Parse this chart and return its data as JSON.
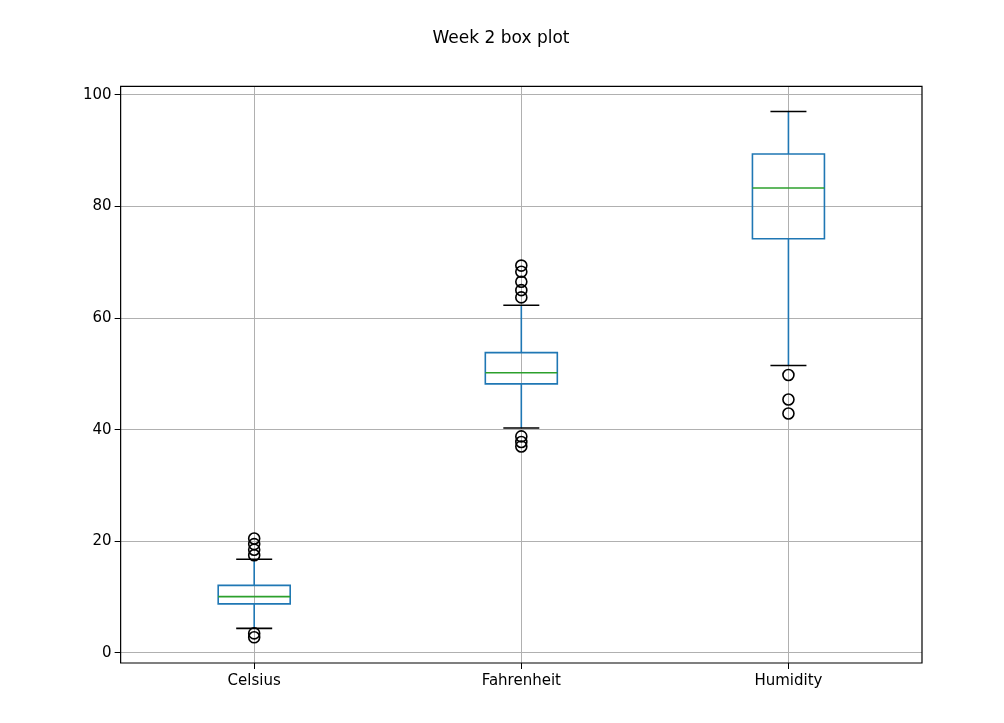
{
  "chart_data": {
    "type": "box",
    "title": "Week 2 box plot",
    "categories": [
      "Celsius",
      "Fahrenheit",
      "Humidity"
    ],
    "boxes": [
      {
        "low": 4.4,
        "q1": 8.8,
        "median": 10.1,
        "q3": 12.1,
        "high": 16.8,
        "outliers": [
          17.5,
          18.5,
          19.5,
          20.5,
          3.5,
          2.8
        ]
      },
      {
        "low": 40.3,
        "q1": 48.2,
        "median": 50.2,
        "q3": 53.8,
        "high": 62.3,
        "outliers": [
          63.7,
          65,
          66.5,
          68.3,
          69.4,
          38.8,
          37.8,
          37
        ]
      },
      {
        "low": 51.5,
        "q1": 74.2,
        "median": 83.3,
        "q3": 89.4,
        "high": 97,
        "outliers": [
          49.8,
          45.4,
          42.9
        ]
      }
    ],
    "color": "#1f77b4",
    "ylim": [
      -1.8,
      101.5
    ],
    "yticks": [
      0,
      20,
      40,
      60,
      80,
      100
    ],
    "grid": true
  }
}
